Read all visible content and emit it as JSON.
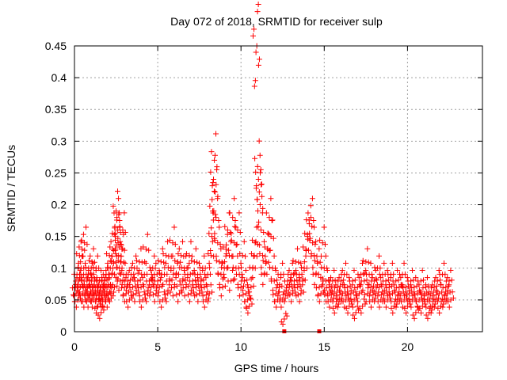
{
  "chart_data": {
    "type": "scatter",
    "title": "Day 072 of 2018, SRMTID for receiver sulp",
    "xlabel": "GPS time / hours",
    "ylabel": "SRMTID / TECUs",
    "xlim": [
      0,
      24.5
    ],
    "ylim": [
      0,
      0.45
    ],
    "grid": true,
    "marker": "+",
    "marker_color": "#ff0000",
    "x_ticks": [
      0,
      5,
      10,
      15,
      20
    ],
    "x_tick_labels": [
      "0",
      "5",
      "10",
      "15",
      "20"
    ],
    "y_ticks": [
      0,
      0.05,
      0.1,
      0.15,
      0.2,
      0.25,
      0.3,
      0.35,
      0.4,
      0.45
    ],
    "y_tick_labels": [
      "0",
      "0.05",
      "0.1",
      "0.15",
      "0.2",
      "0.25",
      "0.3",
      "0.35",
      "0.4",
      "0.45"
    ],
    "series": [
      {
        "name": "SRMTID",
        "x": [
          0.05,
          0.1,
          0.15,
          0.2,
          0.25,
          0.3,
          0.35,
          0.4,
          0.45,
          0.5,
          0.55,
          0.6,
          0.65,
          0.7,
          0.75,
          0.8,
          0.85,
          0.9,
          0.95,
          1.0,
          1.05,
          1.1,
          1.15,
          1.2,
          1.25,
          1.3,
          1.35,
          1.4,
          1.45,
          1.5,
          1.55,
          1.6,
          1.65,
          1.7,
          1.75,
          1.8,
          1.85,
          1.9,
          1.95,
          2.0,
          2.05,
          2.1,
          2.15,
          2.2,
          2.25,
          2.3,
          2.35,
          2.4,
          2.45,
          2.5,
          2.55,
          2.6,
          2.62,
          2.65,
          2.7,
          2.75,
          2.8,
          2.85,
          2.9,
          2.95,
          3.0,
          3.1,
          3.2,
          3.3,
          3.4,
          3.5,
          3.6,
          3.7,
          3.8,
          3.9,
          4.0,
          4.1,
          4.2,
          4.3,
          4.4,
          4.5,
          4.6,
          4.7,
          4.8,
          4.9,
          5.0,
          5.1,
          5.2,
          5.3,
          5.4,
          5.5,
          5.6,
          5.7,
          5.8,
          5.9,
          6.0,
          6.1,
          6.2,
          6.3,
          6.4,
          6.5,
          6.6,
          6.7,
          6.8,
          6.9,
          7.0,
          7.1,
          7.2,
          7.3,
          7.4,
          7.5,
          7.6,
          7.7,
          7.8,
          7.9,
          8.0,
          8.1,
          8.2,
          8.25,
          8.3,
          8.35,
          8.4,
          8.45,
          8.5,
          8.6,
          8.7,
          8.8,
          8.9,
          9.0,
          9.1,
          9.2,
          9.3,
          9.4,
          9.5,
          9.6,
          9.7,
          9.8,
          9.9,
          10.0,
          10.1,
          10.2,
          10.3,
          10.4,
          10.5,
          10.6,
          10.7,
          10.8,
          10.85,
          10.9,
          10.95,
          11.0,
          11.05,
          11.1,
          11.15,
          11.2,
          11.3,
          11.4,
          11.5,
          11.6,
          11.7,
          11.8,
          11.9,
          12.0,
          12.1,
          12.2,
          12.3,
          12.4,
          12.5,
          12.6,
          12.7,
          12.8,
          12.9,
          13.0,
          13.1,
          13.2,
          13.3,
          13.4,
          13.5,
          13.6,
          13.7,
          13.8,
          13.9,
          14.0,
          14.1,
          14.2,
          14.3,
          14.4,
          14.5,
          14.6,
          14.7,
          14.8,
          14.9,
          15.0,
          15.1,
          15.2,
          15.3,
          15.4,
          15.5,
          15.6,
          15.7,
          15.8,
          15.9,
          16.0,
          16.1,
          16.2,
          16.3,
          16.4,
          16.5,
          16.6,
          16.7,
          16.8,
          16.9,
          17.0,
          17.1,
          17.2,
          17.3,
          17.4,
          17.5,
          17.6,
          17.7,
          17.8,
          17.9,
          18.0,
          18.1,
          18.2,
          18.3,
          18.4,
          18.5,
          18.6,
          18.7,
          18.8,
          18.9,
          19.0,
          19.1,
          19.2,
          19.3,
          19.4,
          19.5,
          19.6,
          19.7,
          19.8,
          19.9,
          20.0,
          20.1,
          20.2,
          20.3,
          20.4,
          20.5,
          20.6,
          20.7,
          20.8,
          20.9,
          21.0,
          21.1,
          21.2,
          21.3,
          21.4,
          21.5,
          21.6,
          21.7,
          21.8,
          21.9,
          22.0,
          22.1,
          22.2,
          22.3,
          22.4,
          22.5,
          22.6
        ],
        "y": [
          0.07,
          0.06,
          0.09,
          0.05,
          0.08,
          0.12,
          0.07,
          0.1,
          0.13,
          0.06,
          0.09,
          0.14,
          0.05,
          0.07,
          0.08,
          0.06,
          0.1,
          0.05,
          0.07,
          0.09,
          0.11,
          0.06,
          0.05,
          0.08,
          0.07,
          0.1,
          0.06,
          0.04,
          0.05,
          0.08,
          0.07,
          0.03,
          0.06,
          0.05,
          0.07,
          0.08,
          0.05,
          0.09,
          0.06,
          0.07,
          0.05,
          0.12,
          0.1,
          0.06,
          0.09,
          0.13,
          0.11,
          0.07,
          0.15,
          0.19,
          0.18,
          0.16,
          0.14,
          0.12,
          0.1,
          0.08,
          0.11,
          0.13,
          0.16,
          0.09,
          0.07,
          0.06,
          0.08,
          0.05,
          0.09,
          0.07,
          0.1,
          0.06,
          0.08,
          0.11,
          0.07,
          0.05,
          0.09,
          0.13,
          0.06,
          0.08,
          0.07,
          0.1,
          0.09,
          0.06,
          0.08,
          0.07,
          0.11,
          0.05,
          0.09,
          0.12,
          0.06,
          0.08,
          0.1,
          0.14,
          0.07,
          0.09,
          0.11,
          0.06,
          0.12,
          0.08,
          0.1,
          0.07,
          0.09,
          0.12,
          0.06,
          0.08,
          0.11,
          0.07,
          0.09,
          0.06,
          0.08,
          0.1,
          0.07,
          0.05,
          0.09,
          0.06,
          0.12,
          0.15,
          0.19,
          0.24,
          0.27,
          0.22,
          0.18,
          0.14,
          0.11,
          0.09,
          0.07,
          0.1,
          0.13,
          0.16,
          0.12,
          0.08,
          0.18,
          0.14,
          0.1,
          0.16,
          0.09,
          0.07,
          0.12,
          0.08,
          0.06,
          0.05,
          0.04,
          0.07,
          0.1,
          0.12,
          0.14,
          0.44,
          0.45,
          0.26,
          0.24,
          0.22,
          0.2,
          0.16,
          0.12,
          0.09,
          0.11,
          0.13,
          0.18,
          0.15,
          0.1,
          0.08,
          0.06,
          0.05,
          0.07,
          0.09,
          0.05,
          0.02,
          0.06,
          0.08,
          0.07,
          0.09,
          0.06,
          0.08,
          0.11,
          0.07,
          0.09,
          0.06,
          0.08,
          0.1,
          0.13,
          0.15,
          0.17,
          0.18,
          0.14,
          0.12,
          0.09,
          0.11,
          0.07,
          0.06,
          0.14,
          0.1,
          0.08,
          0.06,
          0.07,
          0.05,
          0.08,
          0.06,
          0.04,
          0.07,
          0.05,
          0.08,
          0.06,
          0.09,
          0.05,
          0.07,
          0.04,
          0.06,
          0.08,
          0.05,
          0.03,
          0.07,
          0.06,
          0.09,
          0.04,
          0.08,
          0.11,
          0.06,
          0.09,
          0.07,
          0.05,
          0.08,
          0.06,
          0.1,
          0.07,
          0.05,
          0.09,
          0.06,
          0.08,
          0.05,
          0.07,
          0.09,
          0.06,
          0.04,
          0.08,
          0.05,
          0.07,
          0.06,
          0.09,
          0.05,
          0.07,
          0.04,
          0.06,
          0.08,
          0.05,
          0.07,
          0.03,
          0.06,
          0.05,
          0.08,
          0.04,
          0.06,
          0.07,
          0.05,
          0.03,
          0.06,
          0.04,
          0.07,
          0.05,
          0.08,
          0.06,
          0.04,
          0.09,
          0.05,
          0.07,
          0.06,
          0.08,
          0.05
        ]
      }
    ],
    "markers_on_axis": [
      12.6,
      14.7
    ]
  }
}
